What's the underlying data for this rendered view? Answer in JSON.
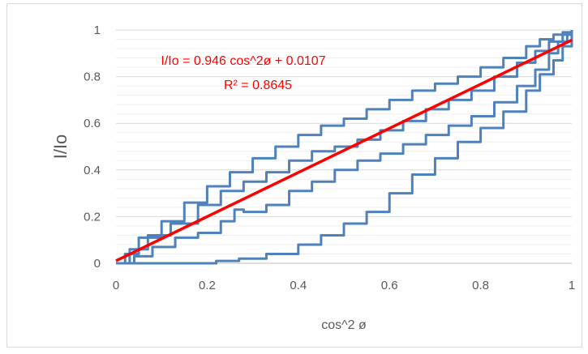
{
  "chart_data": {
    "type": "scatter",
    "xlabel": "cos^2 ø",
    "ylabel": "I/Io",
    "xlim": [
      0,
      1
    ],
    "ylim": [
      0,
      1
    ],
    "x_ticks": [
      "0",
      "0.2",
      "0.4",
      "0.6",
      "0.8",
      "1"
    ],
    "y_ticks": [
      "0",
      "0.2",
      "0.4",
      "0.6",
      "0.8",
      "1"
    ],
    "grid": true,
    "annotations": {
      "equation": "I/Io = 0.946 cos^2ø + 0.0107",
      "r_squared": "R² = 0.8645"
    },
    "trendline": {
      "slope": 0.946,
      "intercept": 0.0107,
      "x_range": [
        0,
        1
      ],
      "color": "#ff0000"
    },
    "series_color": "#4f81bd",
    "series": [
      {
        "x": [
          0.0,
          0.02,
          0.05,
          0.1,
          0.15,
          0.2,
          0.25,
          0.3,
          0.35,
          0.4,
          0.45,
          0.5,
          0.55,
          0.6,
          0.65,
          0.7,
          0.75,
          0.8,
          0.85,
          0.9,
          0.93,
          0.96,
          0.98,
          1.0
        ],
        "y": [
          0.0,
          0.04,
          0.11,
          0.18,
          0.26,
          0.33,
          0.39,
          0.45,
          0.5,
          0.55,
          0.59,
          0.62,
          0.66,
          0.7,
          0.74,
          0.77,
          0.8,
          0.84,
          0.88,
          0.93,
          0.96,
          0.98,
          0.99,
          1.0
        ]
      },
      {
        "x": [
          0.0,
          0.03,
          0.07,
          0.12,
          0.18,
          0.23,
          0.28,
          0.33,
          0.38,
          0.43,
          0.48,
          0.53,
          0.58,
          0.63,
          0.68,
          0.73,
          0.78,
          0.83,
          0.88,
          0.92,
          0.95,
          0.98,
          1.0
        ],
        "y": [
          0.0,
          0.06,
          0.12,
          0.17,
          0.25,
          0.31,
          0.35,
          0.39,
          0.44,
          0.48,
          0.5,
          0.53,
          0.57,
          0.61,
          0.66,
          0.7,
          0.74,
          0.8,
          0.86,
          0.91,
          0.95,
          0.98,
          1.0
        ]
      },
      {
        "x": [
          0.0,
          0.04,
          0.08,
          0.13,
          0.18,
          0.23,
          0.26,
          0.28,
          0.33,
          0.38,
          0.43,
          0.48,
          0.53,
          0.58,
          0.63,
          0.68,
          0.73,
          0.78,
          0.83,
          0.88,
          0.92,
          0.95,
          0.97,
          0.99,
          1.0
        ],
        "y": [
          0.0,
          0.03,
          0.07,
          0.11,
          0.13,
          0.18,
          0.23,
          0.22,
          0.25,
          0.31,
          0.35,
          0.4,
          0.44,
          0.47,
          0.51,
          0.55,
          0.59,
          0.63,
          0.69,
          0.76,
          0.83,
          0.9,
          0.95,
          0.98,
          1.0
        ]
      },
      {
        "x": [
          0.0,
          0.1,
          0.18,
          0.22,
          0.27,
          0.33,
          0.4,
          0.45,
          0.5,
          0.55,
          0.6,
          0.65,
          0.7,
          0.75,
          0.8,
          0.85,
          0.9,
          0.93,
          0.96,
          0.98,
          1.0
        ],
        "y": [
          0.0,
          0.0,
          0.0,
          0.01,
          0.02,
          0.04,
          0.08,
          0.12,
          0.17,
          0.22,
          0.3,
          0.38,
          0.45,
          0.52,
          0.58,
          0.65,
          0.74,
          0.81,
          0.87,
          0.93,
          1.0
        ]
      }
    ]
  }
}
